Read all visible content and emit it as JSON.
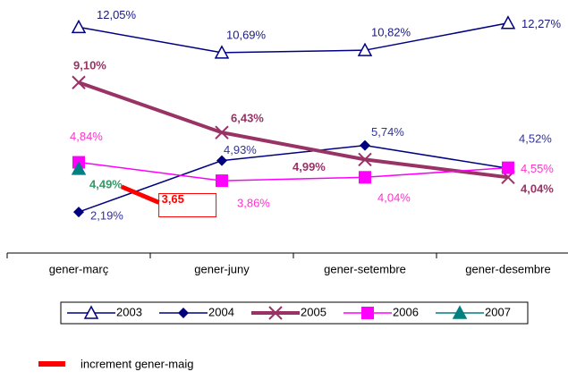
{
  "chart_data": {
    "type": "line",
    "categories": [
      "gener-març",
      "gener-juny",
      "gener-setembre",
      "gener-desembre"
    ],
    "ylim": [
      0,
      13.5
    ],
    "series": [
      {
        "name": "2003",
        "color": "#000080",
        "label_color": "#1a1a80",
        "marker": "triangle-open",
        "values": [
          12.05,
          10.69,
          10.82,
          12.27
        ],
        "value_labels": [
          "12,05%",
          "10,69%",
          "10,82%",
          "12,27%"
        ]
      },
      {
        "name": "2004",
        "color": "#000080",
        "label_color": "#333399",
        "marker": "diamond",
        "values": [
          2.19,
          4.93,
          5.74,
          4.52
        ],
        "value_labels": [
          "2,19%",
          "4,93%",
          "5,74%",
          "4,52%"
        ]
      },
      {
        "name": "2005",
        "color": "#993366",
        "label_color": "#993366",
        "marker": "cross",
        "values": [
          9.1,
          6.43,
          4.99,
          4.04
        ],
        "value_labels": [
          "9,10%",
          "6,43%",
          "4,99%",
          "4,04%"
        ]
      },
      {
        "name": "2006",
        "color": "#ff00ff",
        "label_color": "#ff33cc",
        "marker": "square",
        "values": [
          4.84,
          3.86,
          4.04,
          4.55
        ],
        "value_labels": [
          "4,84%",
          "3,86%",
          "4,04%",
          "4,55%"
        ]
      },
      {
        "name": "2007",
        "color": "#008080",
        "label_color": "#339966",
        "marker": "triangle",
        "values": [
          4.49,
          null,
          null,
          null
        ],
        "value_labels": [
          "4,49%",
          null,
          null,
          null
        ]
      }
    ],
    "increment": {
      "name": "increment gener-maig",
      "color": "#ff0000",
      "value": 3.65,
      "value_label": "3,65"
    }
  }
}
